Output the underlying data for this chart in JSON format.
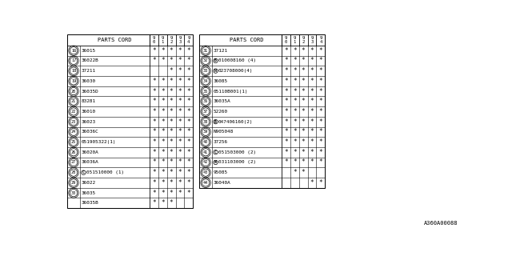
{
  "watermark": "A360A00088",
  "bg_color": "#ffffff",
  "table1": {
    "rows": [
      {
        "num": "16",
        "prefix": "",
        "part": "36015",
        "marks": [
          1,
          1,
          1,
          1,
          1
        ]
      },
      {
        "num": "17",
        "prefix": "",
        "part": "36022B",
        "marks": [
          1,
          1,
          1,
          1,
          1
        ]
      },
      {
        "num": "18",
        "prefix": "",
        "part": "37211",
        "marks": [
          0,
          0,
          1,
          1,
          1
        ]
      },
      {
        "num": "19",
        "prefix": "",
        "part": "36030",
        "marks": [
          1,
          1,
          1,
          1,
          1
        ]
      },
      {
        "num": "20",
        "prefix": "",
        "part": "36035D",
        "marks": [
          1,
          1,
          1,
          1,
          1
        ]
      },
      {
        "num": "21",
        "prefix": "",
        "part": "83281",
        "marks": [
          1,
          1,
          1,
          1,
          1
        ]
      },
      {
        "num": "22",
        "prefix": "",
        "part": "36010",
        "marks": [
          1,
          1,
          1,
          1,
          1
        ]
      },
      {
        "num": "23",
        "prefix": "",
        "part": "36023",
        "marks": [
          1,
          1,
          1,
          1,
          1
        ]
      },
      {
        "num": "24",
        "prefix": "",
        "part": "36036C",
        "marks": [
          1,
          1,
          1,
          1,
          1
        ]
      },
      {
        "num": "25",
        "prefix": "",
        "part": "051905322(1)",
        "marks": [
          1,
          1,
          1,
          1,
          1
        ]
      },
      {
        "num": "26",
        "prefix": "",
        "part": "36020A",
        "marks": [
          1,
          1,
          1,
          1,
          1
        ]
      },
      {
        "num": "27",
        "prefix": "",
        "part": "36036A",
        "marks": [
          1,
          1,
          1,
          1,
          1
        ]
      },
      {
        "num": "28",
        "prefix": "C",
        "part": "051510000 (1)",
        "marks": [
          1,
          1,
          1,
          1,
          1
        ]
      },
      {
        "num": "29",
        "prefix": "",
        "part": "36022",
        "marks": [
          1,
          1,
          1,
          1,
          1
        ]
      },
      {
        "num": "30",
        "prefix": "",
        "part": "36035",
        "marks": [
          1,
          1,
          1,
          1,
          1
        ],
        "extra": "36035B",
        "extra_marks": [
          1,
          1,
          1,
          0,
          0
        ]
      }
    ]
  },
  "table2": {
    "rows": [
      {
        "num": "31",
        "prefix": "",
        "part": "37121",
        "marks": [
          1,
          1,
          1,
          1,
          1
        ]
      },
      {
        "num": "32",
        "prefix": "B",
        "part": "010008160 (4)",
        "marks": [
          1,
          1,
          1,
          1,
          1
        ]
      },
      {
        "num": "33",
        "prefix": "N",
        "part": "023708000(4)",
        "marks": [
          1,
          1,
          1,
          1,
          1
        ]
      },
      {
        "num": "34",
        "prefix": "",
        "part": "36085",
        "marks": [
          1,
          1,
          1,
          1,
          1
        ]
      },
      {
        "num": "35",
        "prefix": "",
        "part": "05110B001(1)",
        "marks": [
          1,
          1,
          1,
          1,
          1
        ]
      },
      {
        "num": "36",
        "prefix": "",
        "part": "36035A",
        "marks": [
          1,
          1,
          1,
          1,
          1
        ]
      },
      {
        "num": "37",
        "prefix": "",
        "part": "52260",
        "marks": [
          1,
          1,
          1,
          1,
          1
        ]
      },
      {
        "num": "38",
        "prefix": "B",
        "part": "047406160(2)",
        "marks": [
          1,
          1,
          1,
          1,
          1
        ]
      },
      {
        "num": "39",
        "prefix": "",
        "part": "N905048",
        "marks": [
          1,
          1,
          1,
          1,
          1
        ]
      },
      {
        "num": "40",
        "prefix": "",
        "part": "37256",
        "marks": [
          1,
          1,
          1,
          1,
          1
        ]
      },
      {
        "num": "41",
        "prefix": "C",
        "part": "051503000 (2)",
        "marks": [
          1,
          1,
          1,
          1,
          1
        ]
      },
      {
        "num": "42",
        "prefix": "W",
        "part": "031103000 (2)",
        "marks": [
          1,
          1,
          1,
          1,
          1
        ]
      },
      {
        "num": "43",
        "prefix": "",
        "part": "95085",
        "marks": [
          0,
          1,
          1,
          0,
          0
        ]
      },
      {
        "num": "44",
        "prefix": "",
        "part": "36040A",
        "marks": [
          0,
          0,
          0,
          1,
          1
        ]
      }
    ]
  }
}
